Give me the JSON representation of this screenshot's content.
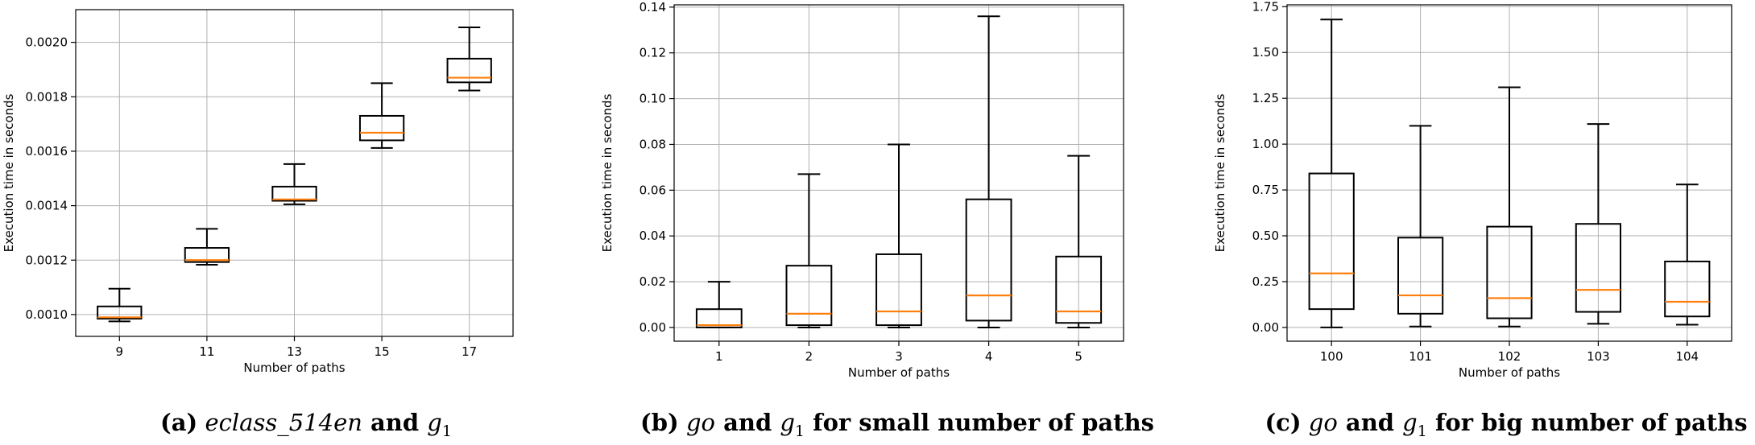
{
  "chart_data": [
    {
      "type": "box",
      "title": "",
      "xlabel": "Number of paths",
      "ylabel": "Execution time in seconds",
      "categories": [
        "9",
        "11",
        "13",
        "15",
        "17"
      ],
      "ylim": [
        0.00092,
        0.00212
      ],
      "yticks": [
        0.001,
        0.0012,
        0.0014,
        0.0016,
        0.0018,
        0.002
      ],
      "ytick_labels": [
        "0.0010",
        "0.0012",
        "0.0014",
        "0.0016",
        "0.0018",
        "0.0020"
      ],
      "grid": true,
      "boxes": [
        {
          "whislo": 0.000975,
          "q1": 0.000985,
          "med": 0.00099,
          "q3": 0.00103,
          "whishi": 0.001095
        },
        {
          "whislo": 0.001183,
          "q1": 0.001193,
          "med": 0.0012,
          "q3": 0.001245,
          "whishi": 0.001315
        },
        {
          "whislo": 0.001405,
          "q1": 0.001418,
          "med": 0.001423,
          "q3": 0.00147,
          "whishi": 0.001553
        },
        {
          "whislo": 0.001612,
          "q1": 0.00164,
          "med": 0.001668,
          "q3": 0.00173,
          "whishi": 0.00185
        },
        {
          "whislo": 0.001823,
          "q1": 0.001853,
          "med": 0.00187,
          "q3": 0.00194,
          "whishi": 0.002055
        }
      ],
      "caption": {
        "label": "(a)",
        "pre": "",
        "italic": "eclass_514en",
        "mid": " and ",
        "sym": "g",
        "sub": "1",
        "post": ""
      }
    },
    {
      "type": "box",
      "title": "",
      "xlabel": "Number of paths",
      "ylabel": "Execution time in seconds",
      "categories": [
        "1",
        "2",
        "3",
        "4",
        "5"
      ],
      "ylim": [
        -0.006,
        0.141
      ],
      "yticks": [
        0.0,
        0.02,
        0.04,
        0.06,
        0.08,
        0.1,
        0.12,
        0.14
      ],
      "ytick_labels": [
        "0.00",
        "0.02",
        "0.04",
        "0.06",
        "0.08",
        "0.10",
        "0.12",
        "0.14"
      ],
      "grid": true,
      "boxes": [
        {
          "whislo": 0.0,
          "q1": 0.0,
          "med": 0.001,
          "q3": 0.008,
          "whishi": 0.02
        },
        {
          "whislo": 0.0,
          "q1": 0.001,
          "med": 0.006,
          "q3": 0.027,
          "whishi": 0.067
        },
        {
          "whislo": 0.0,
          "q1": 0.001,
          "med": 0.007,
          "q3": 0.032,
          "whishi": 0.08
        },
        {
          "whislo": 0.0,
          "q1": 0.003,
          "med": 0.014,
          "q3": 0.056,
          "whishi": 0.136
        },
        {
          "whislo": 0.0,
          "q1": 0.002,
          "med": 0.007,
          "q3": 0.031,
          "whishi": 0.075
        }
      ],
      "caption": {
        "label": "(b)",
        "pre": "",
        "italic": "go",
        "mid": " and ",
        "sym": "g",
        "sub": "1",
        "post": " for small number of paths"
      }
    },
    {
      "type": "box",
      "title": "",
      "xlabel": "Number of paths",
      "ylabel": "Execution time in seconds",
      "categories": [
        "100",
        "101",
        "102",
        "103",
        "104"
      ],
      "ylim": [
        -0.075,
        1.76
      ],
      "yticks": [
        0.0,
        0.25,
        0.5,
        0.75,
        1.0,
        1.25,
        1.5,
        1.75
      ],
      "ytick_labels": [
        "0.00",
        "0.25",
        "0.50",
        "0.75",
        "1.00",
        "1.25",
        "1.50",
        "1.75"
      ],
      "grid": true,
      "boxes": [
        {
          "whislo": 0.0,
          "q1": 0.1,
          "med": 0.295,
          "q3": 0.84,
          "whishi": 1.68
        },
        {
          "whislo": 0.005,
          "q1": 0.075,
          "med": 0.175,
          "q3": 0.49,
          "whishi": 1.1
        },
        {
          "whislo": 0.005,
          "q1": 0.05,
          "med": 0.16,
          "q3": 0.55,
          "whishi": 1.31
        },
        {
          "whislo": 0.02,
          "q1": 0.085,
          "med": 0.205,
          "q3": 0.565,
          "whishi": 1.11
        },
        {
          "whislo": 0.015,
          "q1": 0.06,
          "med": 0.14,
          "q3": 0.36,
          "whishi": 0.78
        }
      ],
      "caption": {
        "label": "(c)",
        "pre": "",
        "italic": "go",
        "mid": " and ",
        "sym": "g",
        "sub": "1",
        "post": " for big number of paths"
      }
    }
  ],
  "colors": {
    "box_edge": "#000000",
    "median": "#ff7f0e",
    "grid": "#b0b0b0",
    "spine": "#000000"
  }
}
